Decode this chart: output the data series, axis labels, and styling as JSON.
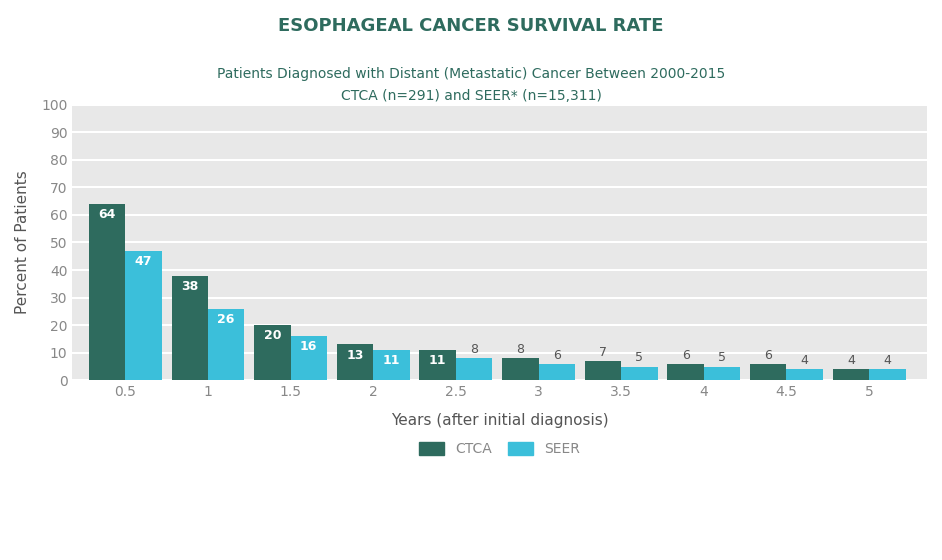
{
  "title": "ESOPHAGEAL CANCER SURVIVAL RATE",
  "subtitle_line1": "Patients Diagnosed with Distant (Metastatic) Cancer Between 2000-2015",
  "subtitle_line2": "CTCA (n=291) and SEER* (n=15,311)",
  "xlabel": "Years (after initial diagnosis)",
  "ylabel": "Percent of Patients",
  "years": [
    0.5,
    1.0,
    1.5,
    2.0,
    2.5,
    3.0,
    3.5,
    4.0,
    4.5,
    5.0
  ],
  "xtick_labels": [
    "0.5",
    "1",
    "1.5",
    "2",
    "2.5",
    "3",
    "3.5",
    "4",
    "4.5",
    "5"
  ],
  "ctca_values": [
    64,
    38,
    20,
    13,
    11,
    8,
    7,
    6,
    6,
    4
  ],
  "seer_values": [
    47,
    26,
    16,
    11,
    8,
    6,
    5,
    5,
    4,
    4
  ],
  "ctca_color": "#2e6b5e",
  "seer_color": "#3bbfda",
  "bar_width": 0.22,
  "ylim": [
    0,
    100
  ],
  "yticks": [
    0,
    10,
    20,
    30,
    40,
    50,
    60,
    70,
    80,
    90,
    100
  ],
  "plot_bg_color": "#e8e8e8",
  "outer_bg_color": "#ffffff",
  "title_color": "#2e6b5e",
  "subtitle_color": "#2e6b5e",
  "label_color_white": "#ffffff",
  "label_color_dark": "#555555",
  "title_fontsize": 13,
  "subtitle_fontsize": 10,
  "axis_label_fontsize": 11,
  "tick_fontsize": 10,
  "bar_label_fontsize": 9,
  "legend_fontsize": 10,
  "white_label_threshold": 10
}
